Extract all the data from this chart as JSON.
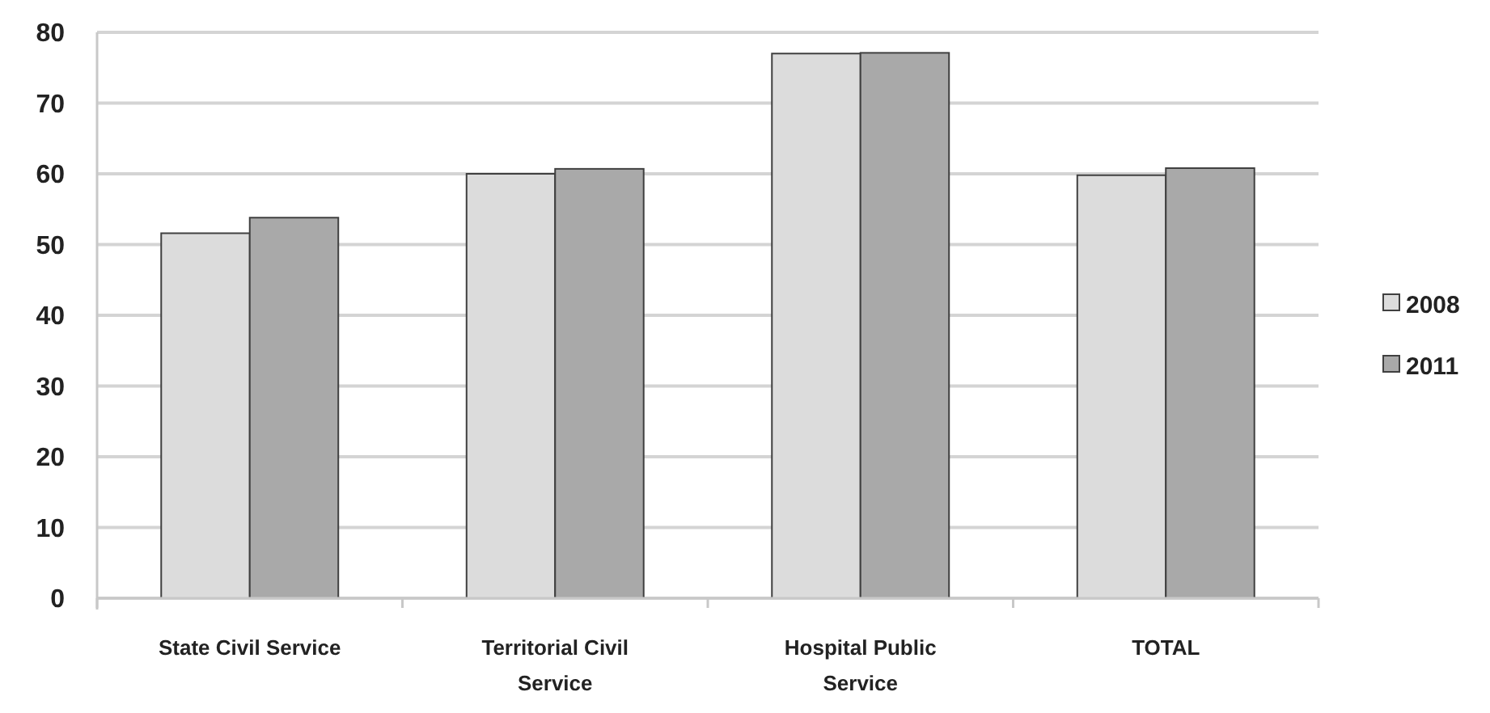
{
  "chart_data": {
    "type": "bar",
    "categories": [
      "State Civil Service",
      "Territorial Civil Service",
      "Hospital Public Service",
      "TOTAL"
    ],
    "series": [
      {
        "name": "2008",
        "color": "#dcdcdc",
        "values": [
          51.6,
          60.0,
          77.0,
          59.8
        ]
      },
      {
        "name": "2011",
        "color": "#a9a9a9",
        "values": [
          53.8,
          60.7,
          77.1,
          60.8
        ]
      }
    ],
    "ylim": [
      0,
      80
    ],
    "yticks": [
      0,
      10,
      20,
      30,
      40,
      50,
      60,
      70,
      80
    ],
    "grid": "y",
    "legend": "right"
  }
}
